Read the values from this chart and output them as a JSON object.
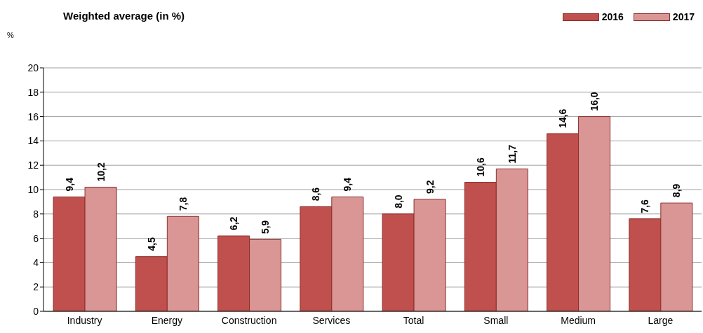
{
  "chart_data": {
    "type": "bar",
    "title": "Weighted average (in %)",
    "ylabel": "%",
    "categories": [
      "Industry",
      "Energy",
      "Construction",
      "Services",
      "Total",
      "Small",
      "Medium",
      "Large"
    ],
    "series": [
      {
        "name": "2016",
        "color": "#c0504d",
        "values": [
          9.4,
          4.5,
          6.2,
          8.6,
          8.0,
          10.6,
          14.6,
          7.6
        ],
        "value_labels": [
          "9,4",
          "4,5",
          "6,2",
          "8,6",
          "8,0",
          "10,6",
          "14,6",
          "7,6"
        ]
      },
      {
        "name": "2017",
        "color": "#d99694",
        "values": [
          10.2,
          7.8,
          5.9,
          9.4,
          9.2,
          11.7,
          16.0,
          8.9
        ],
        "value_labels": [
          "10,2",
          "7,8",
          "5,9",
          "9,4",
          "9,2",
          "11,7",
          "16,0",
          "8,9"
        ]
      }
    ],
    "ylim": [
      0,
      20
    ],
    "yticks": [
      0,
      2,
      4,
      6,
      8,
      10,
      12,
      14,
      16,
      18,
      20
    ],
    "grid": "y",
    "legend": "top right"
  }
}
